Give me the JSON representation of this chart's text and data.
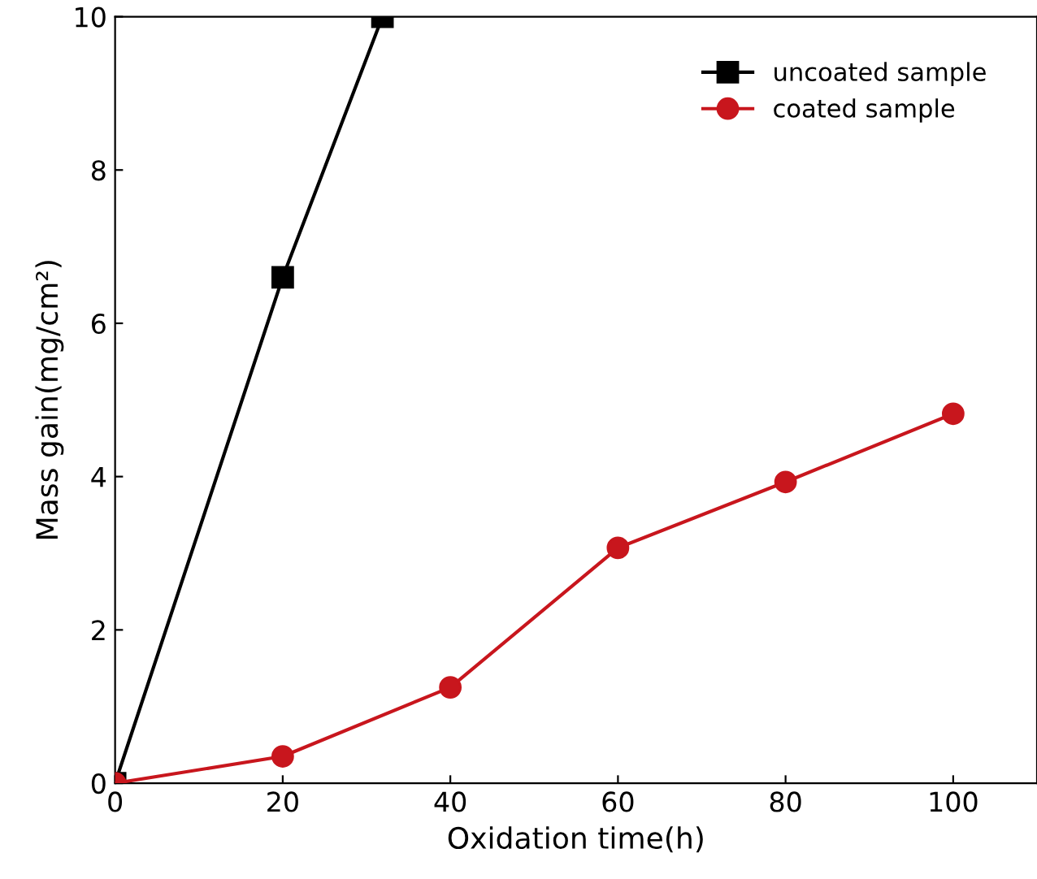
{
  "chart_data": {
    "type": "line",
    "xlabel": "Oxidation time(h)",
    "ylabel": "Mass gain(mg/cm²)",
    "series": [
      {
        "name": "uncoated sample",
        "color": "#000000",
        "marker": "square",
        "x": [
          0,
          20,
          31.9
        ],
        "values": [
          0,
          6.6,
          10
        ]
      },
      {
        "name": "coated sample",
        "color": "#c8161d",
        "marker": "circle",
        "x": [
          0,
          20,
          40,
          60,
          80,
          100
        ],
        "values": [
          0,
          0.35,
          1.25,
          3.07,
          3.93,
          4.82
        ]
      }
    ],
    "xlim": [
      0,
      110
    ],
    "ylim": [
      0,
      10
    ],
    "xticks": [
      0,
      20,
      40,
      60,
      80,
      100
    ],
    "yticks": [
      0,
      2,
      4,
      6,
      8,
      10
    ],
    "grid": false,
    "legend": "top right",
    "line_style": "solid"
  }
}
